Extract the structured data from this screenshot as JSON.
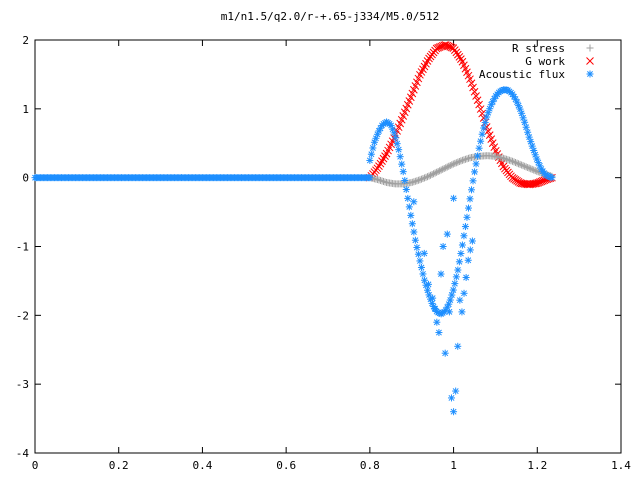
{
  "chart_data": {
    "type": "scatter",
    "title": "m1/n1.5/q2.0/r-+.65-j334/M5.0/512",
    "xlabel": "",
    "ylabel": "",
    "xlim": [
      0,
      1.4
    ],
    "ylim": [
      -4,
      2
    ],
    "x_ticks": [
      "0",
      "0.2",
      "0.4",
      "0.6",
      "0.8",
      "1",
      "1.2",
      "1.4"
    ],
    "y_ticks": [
      "2",
      "1",
      "0",
      "-1",
      "-2",
      "-3",
      "-4"
    ],
    "grid": false,
    "legend_position": "top-right",
    "series": [
      {
        "name": "R stress",
        "marker": "plus",
        "color": "#a0a0a0",
        "x": [
          0.8,
          0.82,
          0.84,
          0.86,
          0.88,
          0.9,
          0.92,
          0.94,
          0.96,
          0.98,
          1.0,
          1.02,
          1.04,
          1.06,
          1.08,
          1.1,
          1.12,
          1.14,
          1.16,
          1.18,
          1.2,
          1.22,
          1.235
        ],
        "y": [
          0.0,
          -0.03,
          -0.07,
          -0.09,
          -0.09,
          -0.07,
          -0.03,
          0.02,
          0.08,
          0.14,
          0.2,
          0.25,
          0.29,
          0.31,
          0.32,
          0.31,
          0.28,
          0.24,
          0.19,
          0.14,
          0.09,
          0.05,
          0.02
        ]
      },
      {
        "name": "G work",
        "marker": "x",
        "color": "#ff0000",
        "x": [
          0.8,
          0.82,
          0.84,
          0.86,
          0.88,
          0.9,
          0.92,
          0.94,
          0.96,
          0.98,
          1.0,
          1.02,
          1.04,
          1.06,
          1.08,
          1.1,
          1.12,
          1.14,
          1.16,
          1.18,
          1.2,
          1.22,
          1.235
        ],
        "y": [
          0.0,
          0.15,
          0.35,
          0.6,
          0.9,
          1.2,
          1.5,
          1.72,
          1.88,
          1.93,
          1.88,
          1.7,
          1.42,
          1.08,
          0.72,
          0.4,
          0.15,
          0.0,
          -0.08,
          -0.1,
          -0.08,
          -0.03,
          0.0
        ]
      },
      {
        "name": "Acoustic flux",
        "marker": "asterisk",
        "color": "#1e8fff",
        "x": [
          0.8,
          0.81,
          0.82,
          0.83,
          0.84,
          0.85,
          0.86,
          0.87,
          0.88,
          0.89,
          0.9,
          0.91,
          0.92,
          0.93,
          0.94,
          0.95,
          0.96,
          0.97,
          0.98,
          0.99,
          1.0,
          1.01,
          1.02,
          1.03,
          1.04,
          1.05,
          1.06,
          1.07,
          1.08,
          1.09,
          1.1,
          1.11,
          1.12,
          1.13,
          1.14,
          1.15,
          1.16,
          1.17,
          1.18,
          1.19,
          1.2,
          1.21,
          1.22,
          1.23,
          1.235
        ],
        "y": [
          0.25,
          0.5,
          0.66,
          0.77,
          0.81,
          0.77,
          0.62,
          0.38,
          0.08,
          -0.28,
          -0.62,
          -0.95,
          -1.22,
          -1.48,
          -1.68,
          -1.85,
          -1.95,
          -1.98,
          -1.94,
          -1.82,
          -1.62,
          -1.35,
          -1.02,
          -0.65,
          -0.28,
          0.08,
          0.4,
          0.68,
          0.9,
          1.06,
          1.18,
          1.25,
          1.28,
          1.27,
          1.22,
          1.12,
          0.98,
          0.8,
          0.6,
          0.42,
          0.25,
          0.12,
          0.04,
          0.01,
          0.0
        ]
      },
      {
        "name": "",
        "marker": "asterisk",
        "color": "#1e8fff",
        "x": [
          0.905,
          0.93,
          0.94,
          0.95,
          0.955,
          0.96,
          0.965,
          0.97,
          0.975,
          0.98,
          0.985,
          0.99,
          0.995,
          1.0,
          1.0,
          1.005,
          1.01,
          1.015,
          1.02,
          1.025,
          1.03,
          1.035,
          1.04,
          1.045
        ],
        "y": [
          -0.35,
          -1.1,
          -1.55,
          -1.75,
          -1.9,
          -2.1,
          -2.25,
          -1.4,
          -1.0,
          -2.55,
          -0.82,
          -1.95,
          -3.2,
          -3.4,
          -0.3,
          -3.1,
          -2.45,
          -1.78,
          -1.95,
          -1.68,
          -1.45,
          -1.2,
          -1.05,
          -0.92
        ]
      },
      {
        "name": "",
        "marker": "asterisk",
        "color": "#1e8fff",
        "x_range": [
          0.0,
          0.8
        ],
        "y": 0.0
      }
    ]
  }
}
